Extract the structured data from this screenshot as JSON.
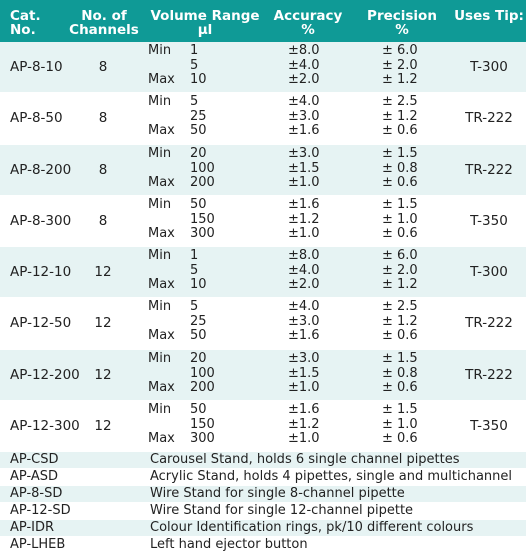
{
  "headers": {
    "cat_no": "Cat. No.",
    "channels_line1": "No. of",
    "channels_line2": "Channels",
    "volume_line1": "Volume Range",
    "volume_line2": "µl",
    "accuracy_line1": "Accuracy",
    "accuracy_line2": "%",
    "precision_line1": "Precision",
    "precision_line2": "%",
    "uses_tip": "Uses Tip:"
  },
  "range_labels": {
    "min": "Min",
    "max": "Max"
  },
  "products": [
    {
      "cat": "AP-8-10",
      "channels": "8",
      "volumes": [
        "1",
        "5",
        "10"
      ],
      "accuracy": [
        "±8.0",
        "±4.0",
        "±2.0"
      ],
      "precision": [
        "± 6.0",
        "± 2.0",
        "± 1.2"
      ],
      "tip": "T-300"
    },
    {
      "cat": "AP-8-50",
      "channels": "8",
      "volumes": [
        "5",
        "25",
        "50"
      ],
      "accuracy": [
        "±4.0",
        "±3.0",
        "±1.6"
      ],
      "precision": [
        "± 2.5",
        "± 1.2",
        "± 0.6"
      ],
      "tip": "TR-222"
    },
    {
      "cat": "AP-8-200",
      "channels": "8",
      "volumes": [
        "20",
        "100",
        "200"
      ],
      "accuracy": [
        "±3.0",
        "±1.5",
        "±1.0"
      ],
      "precision": [
        "± 1.5",
        "± 0.8",
        "± 0.6"
      ],
      "tip": "TR-222"
    },
    {
      "cat": "AP-8-300",
      "channels": "8",
      "volumes": [
        "50",
        "150",
        "300"
      ],
      "accuracy": [
        "±1.6",
        "±1.2",
        "±1.0"
      ],
      "precision": [
        "± 1.5",
        "± 1.0",
        "± 0.6"
      ],
      "tip": "T-350"
    },
    {
      "cat": "AP-12-10",
      "channels": "12",
      "volumes": [
        "1",
        "5",
        "10"
      ],
      "accuracy": [
        "±8.0",
        "±4.0",
        "±2.0"
      ],
      "precision": [
        "± 6.0",
        "± 2.0",
        "± 1.2"
      ],
      "tip": "T-300"
    },
    {
      "cat": "AP-12-50",
      "channels": "12",
      "volumes": [
        "5",
        "25",
        "50"
      ],
      "accuracy": [
        "±4.0",
        "±3.0",
        "±1.6"
      ],
      "precision": [
        "± 2.5",
        "± 1.2",
        "± 0.6"
      ],
      "tip": "TR-222"
    },
    {
      "cat": "AP-12-200",
      "channels": "12",
      "volumes": [
        "20",
        "100",
        "200"
      ],
      "accuracy": [
        "±3.0",
        "±1.5",
        "±1.0"
      ],
      "precision": [
        "± 1.5",
        "± 0.8",
        "± 0.6"
      ],
      "tip": "TR-222"
    },
    {
      "cat": "AP-12-300",
      "channels": "12",
      "volumes": [
        "50",
        "150",
        "300"
      ],
      "accuracy": [
        "±1.6",
        "±1.2",
        "±1.0"
      ],
      "precision": [
        "± 1.5",
        "± 1.0",
        "± 0.6"
      ],
      "tip": "T-350"
    }
  ],
  "accessories": [
    {
      "cat": "AP-CSD",
      "desc": "Carousel Stand, holds 6 single channel pipettes"
    },
    {
      "cat": "AP-ASD",
      "desc": "Acrylic Stand, holds 4 pipettes, single and multichannel"
    },
    {
      "cat": "AP-8-SD",
      "desc": "Wire Stand for single 8-channel pipette"
    },
    {
      "cat": "AP-12-SD",
      "desc": "Wire Stand for single 12-channel pipette"
    },
    {
      "cat": "AP-IDR",
      "desc": "Colour Identification rings, pk/10 different colours"
    },
    {
      "cat": "AP-LHEB",
      "desc": "Left hand ejector button"
    }
  ],
  "colors": {
    "header_bg": "#0f9a96",
    "row_tint": "#e6f3f3",
    "header_text": "#ffffff"
  }
}
